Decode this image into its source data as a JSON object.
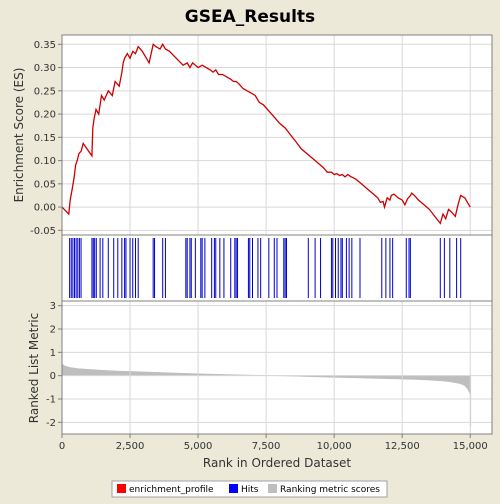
{
  "colors": {
    "background": "#ece9d8",
    "plot_bg": "#ffffff",
    "profile": "#cc0000",
    "hits": "#0000cc",
    "metric": "#bebebe",
    "frame": "#808080"
  },
  "legend": {
    "items": [
      {
        "label": "enrichment_profile",
        "color": "#ff0000"
      },
      {
        "label": "Hits",
        "color": "#0000ff"
      },
      {
        "label": "Ranking metric scores",
        "color": "#bebebe"
      }
    ]
  },
  "chart_data": {
    "type": "line",
    "title": "GSEA_Results",
    "xlabel": "Rank in Ordered Dataset",
    "xlim": [
      0,
      15800
    ],
    "x_ticks": [
      0,
      2500,
      5000,
      7500,
      10000,
      12500,
      15000
    ],
    "x_tick_labels": [
      "0",
      "2,500",
      "5,000",
      "7,500",
      "10,000",
      "12,500",
      "15,000"
    ],
    "enrichment": {
      "ylabel": "Enrichment Score (ES)",
      "ylim": [
        -0.06,
        0.37
      ],
      "y_ticks": [
        -0.05,
        0,
        0.05,
        0.1,
        0.15,
        0.2,
        0.25,
        0.3,
        0.35
      ],
      "y_tick_labels": [
        "-0.05",
        "0.00",
        "0.05",
        "0.10",
        "0.15",
        "0.20",
        "0.25",
        "0.30",
        "0.35"
      ],
      "series": [
        {
          "x": [
            0,
            250,
            300,
            380,
            450,
            500,
            560,
            620,
            700,
            780,
            1100,
            1130,
            1180,
            1250,
            1350,
            1450,
            1550,
            1700,
            1850,
            1950,
            2100,
            2200,
            2250,
            2300,
            2400,
            2500,
            2600,
            2700,
            2800,
            2950,
            3200,
            3350,
            3450,
            3600,
            3700,
            3800,
            3950,
            4200,
            4450,
            4600,
            4700,
            4800,
            4900,
            5000,
            5150,
            5300,
            5450,
            5550,
            5650,
            5750,
            5900,
            6050,
            6200,
            6300,
            6400,
            6500,
            6650,
            6800,
            6950,
            7100,
            7250,
            7400,
            7550,
            7700,
            7850,
            8000,
            8200,
            8400,
            8600,
            8800,
            9000,
            9200,
            9400,
            9600,
            9750,
            9900,
            10000,
            10100,
            10200,
            10300,
            10400,
            10500,
            10600,
            10700,
            10800,
            10900,
            11000,
            11200,
            11400,
            11600,
            11700,
            11800,
            11850,
            11950,
            12050,
            12100,
            12200,
            12350,
            12500,
            12600,
            12700,
            12800,
            12850,
            12950,
            13100,
            13300,
            13500,
            13700,
            13900,
            14000,
            14100,
            14200,
            14300,
            14450,
            14550,
            14650,
            14800,
            14900,
            15000
          ],
          "y": [
            0.0,
            -0.015,
            0.015,
            0.04,
            0.065,
            0.09,
            0.1,
            0.115,
            0.12,
            0.137,
            0.11,
            0.17,
            0.19,
            0.21,
            0.2,
            0.24,
            0.23,
            0.25,
            0.24,
            0.27,
            0.26,
            0.29,
            0.31,
            0.32,
            0.33,
            0.32,
            0.335,
            0.33,
            0.345,
            0.335,
            0.31,
            0.35,
            0.345,
            0.34,
            0.35,
            0.34,
            0.335,
            0.32,
            0.305,
            0.31,
            0.3,
            0.31,
            0.305,
            0.3,
            0.305,
            0.3,
            0.295,
            0.29,
            0.295,
            0.285,
            0.285,
            0.28,
            0.275,
            0.27,
            0.27,
            0.265,
            0.255,
            0.25,
            0.245,
            0.24,
            0.225,
            0.22,
            0.21,
            0.2,
            0.19,
            0.18,
            0.17,
            0.155,
            0.14,
            0.125,
            0.115,
            0.105,
            0.095,
            0.085,
            0.075,
            0.075,
            0.07,
            0.072,
            0.068,
            0.07,
            0.065,
            0.07,
            0.066,
            0.063,
            0.06,
            0.055,
            0.05,
            0.04,
            0.03,
            0.02,
            0.01,
            0.012,
            0.0,
            0.02,
            0.015,
            0.025,
            0.028,
            0.02,
            0.015,
            0.005,
            0.018,
            0.025,
            0.03,
            0.025,
            0.015,
            0.005,
            -0.005,
            -0.02,
            -0.035,
            -0.015,
            -0.025,
            -0.005,
            -0.01,
            -0.02,
            0.005,
            0.025,
            0.02,
            0.01,
            0.0
          ]
        }
      ]
    },
    "hits": [
      {
        "x": 280
      },
      {
        "x": 340
      },
      {
        "x": 400
      },
      {
        "x": 460
      },
      {
        "x": 520
      },
      {
        "x": 580
      },
      {
        "x": 640
      },
      {
        "x": 700
      },
      {
        "x": 1100
      },
      {
        "x": 1150
      },
      {
        "x": 1200
      },
      {
        "x": 1260
      },
      {
        "x": 1400
      },
      {
        "x": 1500
      },
      {
        "x": 1700
      },
      {
        "x": 1900
      },
      {
        "x": 2050
      },
      {
        "x": 2200
      },
      {
        "x": 2300
      },
      {
        "x": 2350
      },
      {
        "x": 2500
      },
      {
        "x": 2600
      },
      {
        "x": 2700
      },
      {
        "x": 2800
      },
      {
        "x": 3350
      },
      {
        "x": 3400
      },
      {
        "x": 3700
      },
      {
        "x": 3800
      },
      {
        "x": 4550
      },
      {
        "x": 4600
      },
      {
        "x": 4700
      },
      {
        "x": 4750
      },
      {
        "x": 4900
      },
      {
        "x": 5100
      },
      {
        "x": 5150
      },
      {
        "x": 5250
      },
      {
        "x": 5500
      },
      {
        "x": 5600
      },
      {
        "x": 5650
      },
      {
        "x": 5800
      },
      {
        "x": 5950
      },
      {
        "x": 6200
      },
      {
        "x": 6350
      },
      {
        "x": 6400
      },
      {
        "x": 6450
      },
      {
        "x": 6850
      },
      {
        "x": 6900
      },
      {
        "x": 7000
      },
      {
        "x": 7200
      },
      {
        "x": 7300
      },
      {
        "x": 7600
      },
      {
        "x": 7800
      },
      {
        "x": 7900
      },
      {
        "x": 8150
      },
      {
        "x": 8200
      },
      {
        "x": 8250
      },
      {
        "x": 9050
      },
      {
        "x": 9300
      },
      {
        "x": 9500
      },
      {
        "x": 9900
      },
      {
        "x": 9950
      },
      {
        "x": 10050
      },
      {
        "x": 10150
      },
      {
        "x": 10250
      },
      {
        "x": 10300
      },
      {
        "x": 10450
      },
      {
        "x": 10550
      },
      {
        "x": 10650
      },
      {
        "x": 10950
      },
      {
        "x": 11750
      },
      {
        "x": 11900
      },
      {
        "x": 12050
      },
      {
        "x": 12150
      },
      {
        "x": 12650
      },
      {
        "x": 12750
      },
      {
        "x": 12800
      },
      {
        "x": 13900
      },
      {
        "x": 14050
      },
      {
        "x": 14250
      },
      {
        "x": 14500
      },
      {
        "x": 14650
      }
    ],
    "ranked_metric": {
      "ylabel": "Ranked List Metric",
      "ylim": [
        -2.5,
        3.2
      ],
      "y_ticks": [
        -2,
        -1,
        0,
        1,
        2,
        3
      ],
      "y_tick_labels": [
        "-2",
        "-1",
        "0",
        "1",
        "2",
        "3"
      ],
      "series": [
        {
          "x": [
            0,
            100,
            300,
            600,
            1000,
            1500,
            2000,
            3000,
            4000,
            5000,
            6000,
            7000,
            7800,
            8500,
            9000,
            10000,
            11000,
            12000,
            13000,
            13500,
            14000,
            14300,
            14600,
            14800,
            14900,
            15000,
            15020
          ],
          "y": [
            0.5,
            0.42,
            0.35,
            0.3,
            0.27,
            0.23,
            0.2,
            0.16,
            0.12,
            0.08,
            0.05,
            0.02,
            0.0,
            -0.02,
            -0.04,
            -0.07,
            -0.1,
            -0.13,
            -0.16,
            -0.19,
            -0.23,
            -0.27,
            -0.33,
            -0.42,
            -0.55,
            -0.8,
            -2.2
          ]
        }
      ]
    }
  }
}
